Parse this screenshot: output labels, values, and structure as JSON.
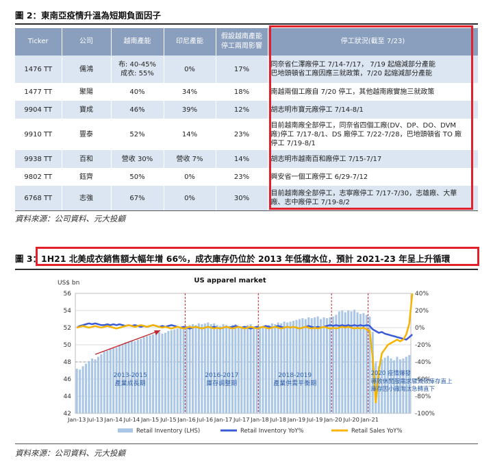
{
  "figure2": {
    "title": "圖 2：東南亞疫情升溫為短期負面因子",
    "headers": [
      "Ticker",
      "公司",
      "越南產能",
      "印尼產能",
      "假設越南產能\n停工兩周影響",
      "停工狀況(截至 7/23)"
    ],
    "rows": [
      {
        "ticker": "1476 TT",
        "company": "儒鴻",
        "vietnam": "布: 40-45%\n成衣: 55%",
        "indonesia": "0%",
        "impact": "17%",
        "status": "同奈省仁澤廠停工 7/14-7/17， 7/19 起縮減部分產能\n巴地頭頓省工廠因應三就政策，7/20 起縮減部分產能"
      },
      {
        "ticker": "1477 TT",
        "company": "聚陽",
        "vietnam": "40%",
        "indonesia": "34%",
        "impact": "18%",
        "status": "南越兩個工廠自 7/20 停工，其他越南廠實施三就政策"
      },
      {
        "ticker": "9904 TT",
        "company": "寶成",
        "vietnam": "46%",
        "indonesia": "39%",
        "impact": "12%",
        "status": "胡志明市寶元廠停工 7/14-8/1"
      },
      {
        "ticker": "9910 TT",
        "company": "豐泰",
        "vietnam": "52%",
        "indonesia": "14%",
        "impact": "23%",
        "status": "目前越南廠全部停工，同奈省四個工廠(DV、DP、DO、DVM\n廠)停工 7/17-8/1、DS 廠停工 7/22-7/28，巴地頭頓省 TO 廠\n停工 7/19-8/1"
      },
      {
        "ticker": "9938 TT",
        "company": "百和",
        "vietnam": "營收 30%",
        "indonesia": "營收 7%",
        "impact": "14%",
        "status": "胡志明市越南百和廠停工 7/15-7/17"
      },
      {
        "ticker": "9802 TT",
        "company": "鈺齊",
        "vietnam": "50%",
        "indonesia": "0%",
        "impact": "23%",
        "status": "興安省一個工廠停工 6/29-7/12"
      },
      {
        "ticker": "6768 TT",
        "company": "志強",
        "vietnam": "67%",
        "indonesia": "0%",
        "impact": "30%",
        "status": "目前越南廠全部停工，志寧廠停工 7/17-7/30，志雄廠、大華\n廠、志中廠停工 7/19-8/2"
      }
    ],
    "source": "資料來源：公司資料、元大投顧"
  },
  "figure3": {
    "label": "圖 3：",
    "title": "1H21 北美成衣銷售額大幅年增 66%，成衣庫存仍位於 2013 年低檔水位，預計 2021-23 年呈上升循環",
    "source": "資料來源：公司資料、元大投顧"
  },
  "chart_data": {
    "type": "bar",
    "title": "US apparel market",
    "ylabel": "US$ bn",
    "ylim": [
      42,
      56
    ],
    "y_ticks": [
      42,
      44,
      46,
      48,
      50,
      52,
      54,
      56
    ],
    "y2lim": [
      -100,
      40
    ],
    "y2_ticks": [
      "40%",
      "20%",
      "0%",
      "-20%",
      "-40%",
      "-60%",
      "-80%",
      "-100%"
    ],
    "x_labels": [
      "Jan-13",
      "Jul-13",
      "Jan-14",
      "Jul-14",
      "Jan-15",
      "Jul-15",
      "Jan-16",
      "Jul-16",
      "Jan-17",
      "Jul-17",
      "Jan-18",
      "Jul-18",
      "Jan-19",
      "Jul-19",
      "Jan-20",
      "Jul-20",
      "Jan-21"
    ],
    "grid": true,
    "legend_position": "bottom",
    "series": [
      {
        "name": "Retail Inventory (LHS)",
        "type": "bar",
        "axis": "left",
        "color": "#a9c6e6",
        "values": [
          47.2,
          47.1,
          47.5,
          47.8,
          48.1,
          48.4,
          48.3,
          48.6,
          48.9,
          49.2,
          49.3,
          49.5,
          49.6,
          49.7,
          49.9,
          50.1,
          50.3,
          50.4,
          50.5,
          50.4,
          50.6,
          50.7,
          50.9,
          51.0,
          51.1,
          51.2,
          51.4,
          51.5,
          51.3,
          51.4,
          51.6,
          51.7,
          51.8,
          51.9,
          52.0,
          52.1,
          52.2,
          52.3,
          52.4,
          52.3,
          52.5,
          52.4,
          52.5,
          52.6,
          52.4,
          52.5,
          52.3,
          52.2,
          52.4,
          52.3,
          52.2,
          52.3,
          52.4,
          52.1,
          52.0,
          52.2,
          52.3,
          52.4,
          52.1,
          52.2,
          52.0,
          52.1,
          52.2,
          52.3,
          52.5,
          52.4,
          52.6,
          52.5,
          52.7,
          52.6,
          52.7,
          52.8,
          52.9,
          53.0,
          53.1,
          53.0,
          53.2,
          53.1,
          53.2,
          53.3,
          53.0,
          53.2,
          53.1,
          53.2,
          53.3,
          53.5,
          53.9,
          54.0,
          53.8,
          54.0,
          53.9,
          54.1,
          53.8,
          53.6,
          53.7,
          53.5,
          53.3,
          51.5,
          47.9,
          47.5,
          48.3,
          48.5,
          48.7,
          48.4,
          48.2,
          48.6,
          48.3,
          48.4,
          48.6,
          48.8
        ]
      },
      {
        "name": "Retail Inventory YoY%",
        "type": "line",
        "axis": "right",
        "color": "#3b5bd6",
        "values": [
          0,
          2,
          3,
          4,
          5,
          4,
          5,
          4,
          3,
          3,
          4,
          3,
          4,
          3,
          4,
          3,
          2,
          3,
          2,
          3,
          2,
          1,
          2,
          1,
          2,
          3,
          2,
          1,
          2,
          1,
          2,
          3,
          2,
          1,
          0,
          1,
          0,
          -1,
          0,
          1,
          0,
          -1,
          0,
          1,
          0,
          1,
          0,
          -1,
          0,
          1,
          0,
          1,
          2,
          1,
          0,
          1,
          0,
          -1,
          0,
          1,
          0,
          1,
          2,
          1,
          0,
          1,
          2,
          1,
          0,
          1,
          0,
          1,
          0,
          -1,
          0,
          1,
          2,
          1,
          0,
          1,
          0,
          1,
          2,
          3,
          2,
          3,
          2,
          3,
          2,
          3,
          2,
          3,
          2,
          3,
          2,
          3,
          2,
          -2,
          -4,
          -6,
          -5,
          -7,
          -8,
          -9,
          -10,
          -11,
          -12,
          -13,
          -14,
          -11,
          -8
        ]
      },
      {
        "name": "Retail Sales YoY%",
        "type": "line",
        "axis": "right",
        "color": "#f4b400",
        "values": [
          0,
          1,
          2,
          1,
          0,
          1,
          2,
          1,
          0,
          1,
          2,
          1,
          0,
          -1,
          0,
          1,
          2,
          3,
          2,
          1,
          2,
          3,
          2,
          1,
          2,
          3,
          2,
          1,
          0,
          1,
          0,
          -1,
          0,
          1,
          0,
          -1,
          0,
          1,
          0,
          1,
          0,
          -1,
          0,
          1,
          0,
          -1,
          0,
          -1,
          0,
          1,
          0,
          -1,
          0,
          1,
          0,
          -1,
          0,
          1,
          0,
          -1,
          0,
          1,
          0,
          -1,
          0,
          1,
          0,
          -1,
          0,
          1,
          0,
          1,
          0,
          -1,
          0,
          1,
          0,
          -1,
          0,
          -1,
          0,
          1,
          0,
          -1,
          0,
          -1,
          0,
          1,
          0,
          1,
          0,
          -1,
          0,
          -1,
          0,
          -2,
          -4,
          -35,
          -88,
          -50,
          -30,
          -25,
          -20,
          -18,
          -16,
          -14,
          -16,
          -14,
          -8,
          5,
          40
        ]
      }
    ],
    "period_labels": [
      {
        "top": "2013-2015",
        "bottom": "產業成長期"
      },
      {
        "top": "2016-2017",
        "bottom": "庫存調整期"
      },
      {
        "top": "2018-2019",
        "bottom": "產業供需平衡期"
      },
      {
        "top": "2020 疫情爆發",
        "bottom": "導致休閒服需求驟減致庫存直上\n庫存因小廠淘汰急轉直下"
      }
    ]
  }
}
